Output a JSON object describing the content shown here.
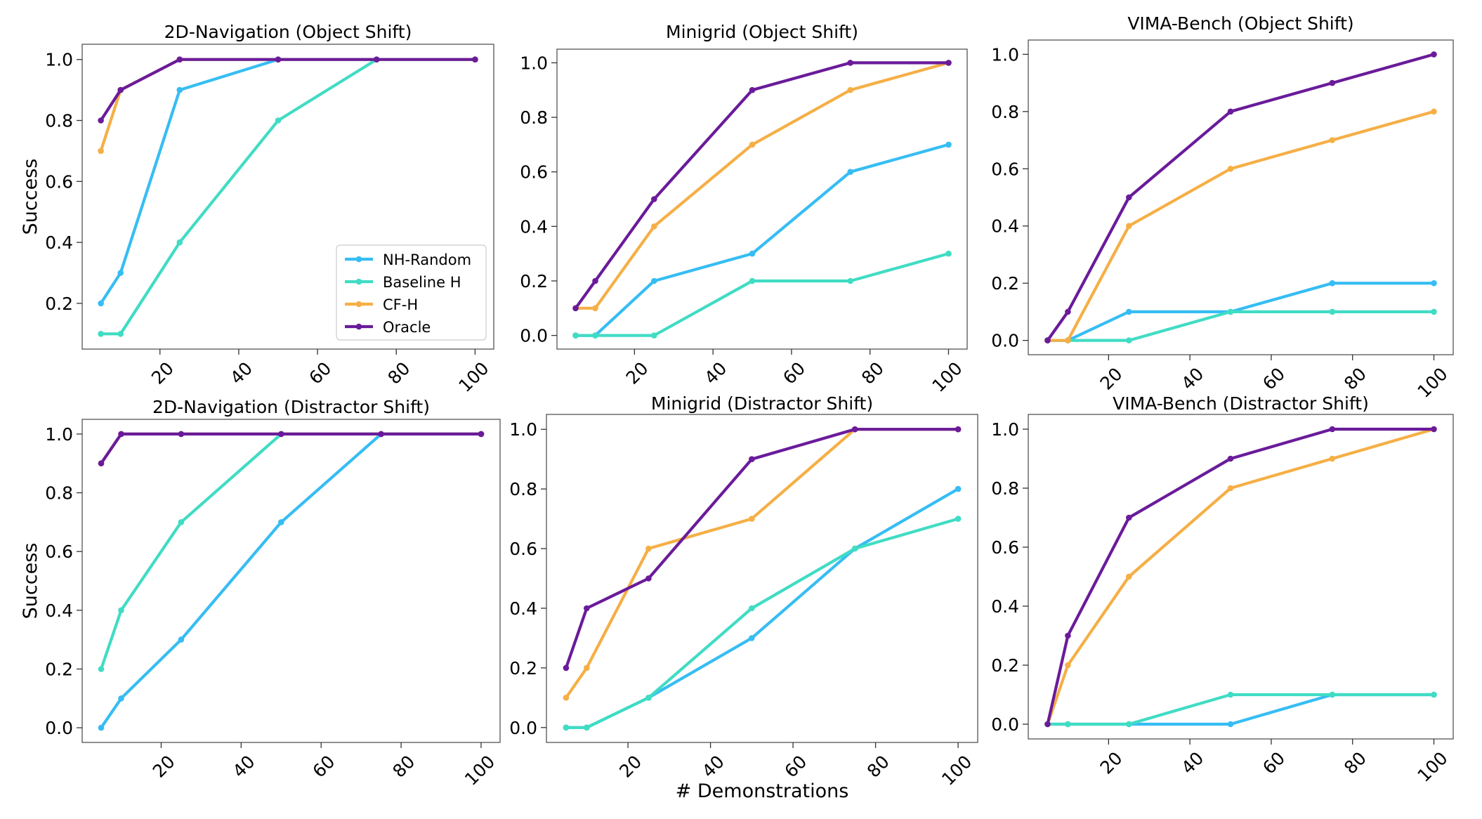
{
  "figure": {
    "shared_xlabel": "# Demonstrations",
    "shared_ylabel": "Success"
  },
  "colors": {
    "NH-Random": "#36bdf3",
    "Baseline H": "#40dcc4",
    "CF-H": "#f5af46",
    "Oracle": "#6a1b9a"
  },
  "legend": {
    "placement": "lower right of top-left panel",
    "entries": [
      "NH-Random",
      "Baseline H",
      "CF-H",
      "Oracle"
    ]
  },
  "chart_data": [
    {
      "type": "line",
      "title": "2D-Navigation (Object Shift)",
      "xlabel": "",
      "ylabel": "Success",
      "x": [
        5,
        10,
        25,
        50,
        75,
        100
      ],
      "xticks": [
        20,
        40,
        60,
        80,
        100
      ],
      "yticks": [
        0.2,
        0.4,
        0.6,
        0.8,
        1.0
      ],
      "ylim": [
        0.05,
        1.05
      ],
      "series": [
        {
          "name": "NH-Random",
          "values": [
            0.2,
            0.3,
            0.9,
            1.0,
            1.0,
            1.0
          ]
        },
        {
          "name": "Baseline H",
          "values": [
            0.1,
            0.1,
            0.4,
            0.8,
            1.0,
            1.0
          ]
        },
        {
          "name": "CF-H",
          "values": [
            0.7,
            0.9,
            1.0,
            1.0,
            1.0,
            1.0
          ]
        },
        {
          "name": "Oracle",
          "values": [
            0.8,
            0.9,
            1.0,
            1.0,
            1.0,
            1.0
          ]
        }
      ]
    },
    {
      "type": "line",
      "title": "Minigrid (Object Shift)",
      "xlabel": "",
      "ylabel": "",
      "x": [
        5,
        10,
        25,
        50,
        75,
        100
      ],
      "xticks": [
        20,
        40,
        60,
        80,
        100
      ],
      "yticks": [
        0.0,
        0.2,
        0.4,
        0.6,
        0.8,
        1.0
      ],
      "ylim": [
        -0.05,
        1.05
      ],
      "series": [
        {
          "name": "NH-Random",
          "values": [
            0.0,
            0.0,
            0.2,
            0.3,
            0.6,
            0.7
          ]
        },
        {
          "name": "Baseline H",
          "values": [
            0.0,
            0.0,
            0.0,
            0.2,
            0.2,
            0.3
          ]
        },
        {
          "name": "CF-H",
          "values": [
            0.1,
            0.1,
            0.4,
            0.7,
            0.9,
            1.0
          ]
        },
        {
          "name": "Oracle",
          "values": [
            0.1,
            0.2,
            0.5,
            0.9,
            1.0,
            1.0
          ]
        }
      ]
    },
    {
      "type": "line",
      "title": "VIMA-Bench (Object Shift)",
      "xlabel": "",
      "ylabel": "",
      "x": [
        5,
        10,
        25,
        50,
        75,
        100
      ],
      "xticks": [
        20,
        40,
        60,
        80,
        100
      ],
      "yticks": [
        0.0,
        0.2,
        0.4,
        0.6,
        0.8,
        1.0
      ],
      "ylim": [
        -0.05,
        1.05
      ],
      "series": [
        {
          "name": "NH-Random",
          "values": [
            0.0,
            0.0,
            0.1,
            0.1,
            0.2,
            0.2
          ]
        },
        {
          "name": "Baseline H",
          "values": [
            0.0,
            0.0,
            0.0,
            0.1,
            0.1,
            0.1
          ]
        },
        {
          "name": "CF-H",
          "values": [
            0.0,
            0.0,
            0.4,
            0.6,
            0.7,
            0.8
          ]
        },
        {
          "name": "Oracle",
          "values": [
            0.0,
            0.1,
            0.5,
            0.8,
            0.9,
            1.0
          ]
        }
      ]
    },
    {
      "type": "line",
      "title": "2D-Navigation (Distractor Shift)",
      "xlabel": "",
      "ylabel": "Success",
      "x": [
        5,
        10,
        25,
        50,
        75,
        100
      ],
      "xticks": [
        20,
        40,
        60,
        80,
        100
      ],
      "yticks": [
        0.0,
        0.2,
        0.4,
        0.6,
        0.8,
        1.0
      ],
      "ylim": [
        -0.05,
        1.05
      ],
      "series": [
        {
          "name": "NH-Random",
          "values": [
            0.0,
            0.1,
            0.3,
            0.7,
            1.0,
            1.0
          ]
        },
        {
          "name": "Baseline H",
          "values": [
            0.2,
            0.4,
            0.7,
            1.0,
            1.0,
            1.0
          ]
        },
        {
          "name": "CF-H",
          "values": [
            0.9,
            1.0,
            1.0,
            1.0,
            1.0,
            1.0
          ]
        },
        {
          "name": "Oracle",
          "values": [
            0.9,
            1.0,
            1.0,
            1.0,
            1.0,
            1.0
          ]
        }
      ]
    },
    {
      "type": "line",
      "title": "Minigrid (Distractor Shift)",
      "xlabel": "# Demonstrations",
      "ylabel": "",
      "x": [
        5,
        10,
        25,
        50,
        75,
        100
      ],
      "xticks": [
        20,
        40,
        60,
        80,
        100
      ],
      "yticks": [
        0.0,
        0.2,
        0.4,
        0.6,
        0.8,
        1.0
      ],
      "ylim": [
        -0.05,
        1.05
      ],
      "series": [
        {
          "name": "NH-Random",
          "values": [
            0.0,
            0.0,
            0.1,
            0.3,
            0.6,
            0.8
          ]
        },
        {
          "name": "Baseline H",
          "values": [
            0.0,
            0.0,
            0.1,
            0.4,
            0.6,
            0.7
          ]
        },
        {
          "name": "CF-H",
          "values": [
            0.1,
            0.2,
            0.6,
            0.7,
            1.0,
            1.0
          ]
        },
        {
          "name": "Oracle",
          "values": [
            0.2,
            0.4,
            0.5,
            0.9,
            1.0,
            1.0
          ]
        }
      ]
    },
    {
      "type": "line",
      "title": "VIMA-Bench (Distractor Shift)",
      "xlabel": "",
      "ylabel": "",
      "x": [
        5,
        10,
        25,
        50,
        75,
        100
      ],
      "xticks": [
        20,
        40,
        60,
        80,
        100
      ],
      "yticks": [
        0.0,
        0.2,
        0.4,
        0.6,
        0.8,
        1.0
      ],
      "ylim": [
        -0.05,
        1.05
      ],
      "series": [
        {
          "name": "NH-Random",
          "values": [
            0.0,
            0.0,
            0.0,
            0.0,
            0.1,
            0.1
          ]
        },
        {
          "name": "Baseline H",
          "values": [
            0.0,
            0.0,
            0.0,
            0.1,
            0.1,
            0.1
          ]
        },
        {
          "name": "CF-H",
          "values": [
            0.0,
            0.2,
            0.5,
            0.8,
            0.9,
            1.0
          ]
        },
        {
          "name": "Oracle",
          "values": [
            0.0,
            0.3,
            0.7,
            0.9,
            1.0,
            1.0
          ]
        }
      ]
    }
  ]
}
